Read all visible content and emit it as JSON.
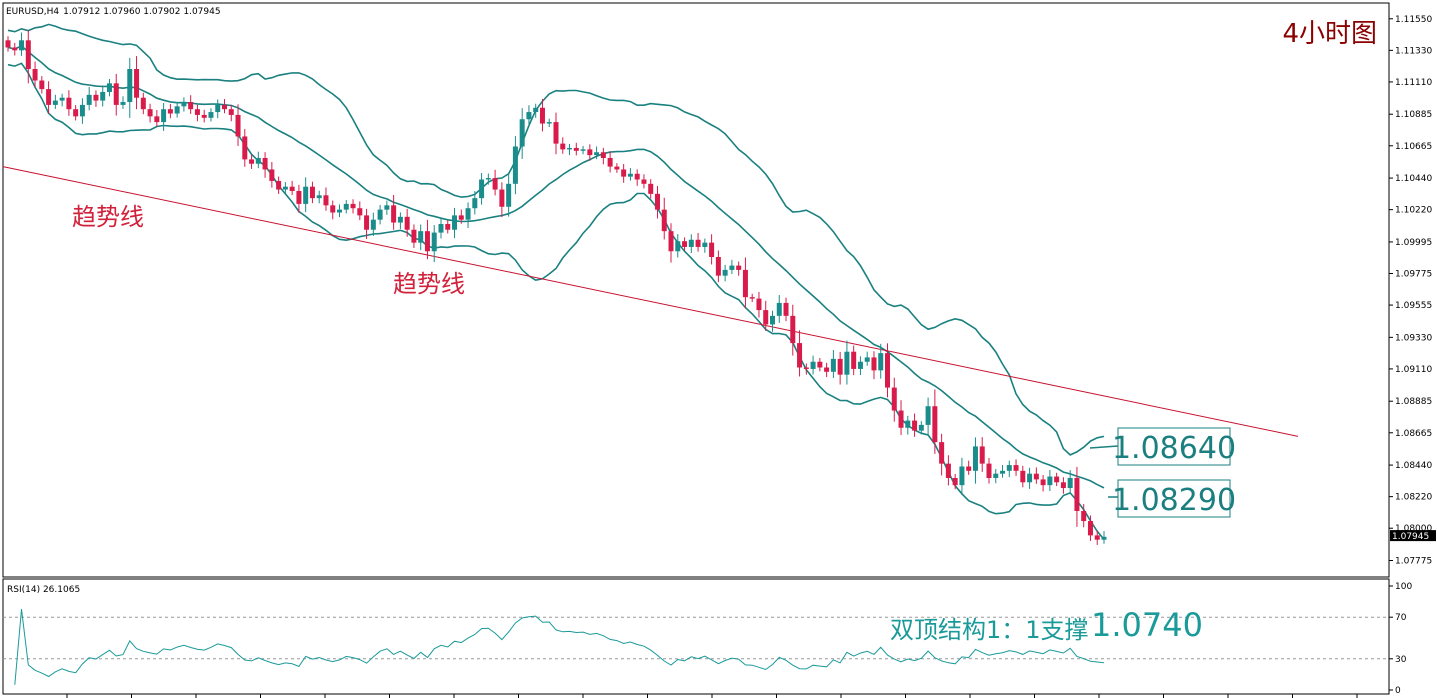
{
  "header": {
    "symbol": "EURUSD,H4",
    "ohlc": "1.07912 1.07960 1.07902 1.07945",
    "timeframe_label": "4小时图"
  },
  "annotations": {
    "trendline_label_1": "趋势线",
    "trendline_label_2": "趋势线",
    "level_middle": "1.08640",
    "level_lower": "1.08290",
    "rsi_note_prefix": "双顶结构1：1支撑",
    "rsi_note_value": "1.0740"
  },
  "colors": {
    "bull": "#1a8c8c",
    "bear": "#d81b4a",
    "band": "#1a8080",
    "trendline": "#c8102e",
    "rsi_line": "#1b9a9a",
    "current_price_bg": "#000000"
  },
  "chart_data": [
    {
      "type": "candlestick",
      "title": "EURUSD,H4",
      "ylim": [
        1.0766,
        1.1166
      ],
      "yticks": [
        "1.11550",
        "1.11330",
        "1.11110",
        "1.10885",
        "1.10665",
        "1.10440",
        "1.10220",
        "1.09995",
        "1.09775",
        "1.09555",
        "1.09330",
        "1.09110",
        "1.08885",
        "1.08665",
        "1.08440",
        "1.08220",
        "1.08000",
        "1.07775"
      ],
      "current_price": "1.07945",
      "bands_indicator": "Bollinger Bands",
      "band_levels_marked": [
        "1.08640",
        "1.08290"
      ],
      "trendline": {
        "from_price": 1.1052,
        "to_price": 1.0864
      },
      "series_close": [
        1.1135,
        1.1133,
        1.114,
        1.112,
        1.1112,
        1.1106,
        1.1095,
        1.1098,
        1.11,
        1.1092,
        1.1087,
        1.1095,
        1.1102,
        1.1098,
        1.1104,
        1.111,
        1.1095,
        1.1097,
        1.112,
        1.11,
        1.1092,
        1.1087,
        1.1083,
        1.1092,
        1.1089,
        1.1094,
        1.1097,
        1.1092,
        1.1088,
        1.1086,
        1.109,
        1.1095,
        1.1092,
        1.1088,
        1.1073,
        1.1057,
        1.1054,
        1.1058,
        1.105,
        1.1042,
        1.1036,
        1.1038,
        1.1035,
        1.1026,
        1.1038,
        1.103,
        1.1032,
        1.1025,
        1.102,
        1.1022,
        1.1026,
        1.1023,
        1.1018,
        1.1008,
        1.1015,
        1.1022,
        1.1025,
        1.1013,
        1.1017,
        1.1008,
        1.0999,
        1.1007,
        1.0993,
        1.1006,
        1.1012,
        1.1008,
        1.1018,
        1.1015,
        1.1023,
        1.103,
        1.1043,
        1.1044,
        1.1036,
        1.1024,
        1.104,
        1.1066,
        1.1085,
        1.109,
        1.1093,
        1.1082,
        1.1083,
        1.1068,
        1.1064,
        1.1065,
        1.1063,
        1.1064,
        1.106,
        1.1062,
        1.1058,
        1.1052,
        1.105,
        1.1045,
        1.1047,
        1.1043,
        1.104,
        1.1033,
        1.1022,
        1.1007,
        1.0993,
        1.1,
        1.0996,
        1.1001,
        1.0996,
        1.0999,
        1.0989,
        1.0976,
        1.098,
        1.0983,
        1.098,
        1.0961,
        1.096,
        1.0952,
        1.0942,
        1.0948,
        1.0957,
        1.0948,
        1.0929,
        1.0912,
        1.0911,
        1.0916,
        1.0912,
        1.0909,
        1.0918,
        1.0907,
        1.0923,
        1.0911,
        1.0916,
        1.0919,
        1.091,
        1.0922,
        1.0898,
        1.0882,
        1.087,
        1.0875,
        1.0868,
        1.0872,
        1.0885,
        1.086,
        1.0845,
        1.0835,
        1.083,
        1.0843,
        1.084,
        1.0857,
        1.0845,
        1.0835,
        1.0838,
        1.084,
        1.0844,
        1.084,
        1.0832,
        1.0838,
        1.0834,
        1.083,
        1.0836,
        1.0832,
        1.0828,
        1.0835,
        1.0812,
        1.0805,
        1.0795,
        1.0792,
        1.0794
      ]
    },
    {
      "type": "line",
      "title": "RSI(14) 26.1065",
      "ylim": [
        0,
        100
      ],
      "yticks": [
        100,
        70,
        30,
        0
      ],
      "levels": [
        70,
        30
      ],
      "current_value": 26.1065
    }
  ]
}
